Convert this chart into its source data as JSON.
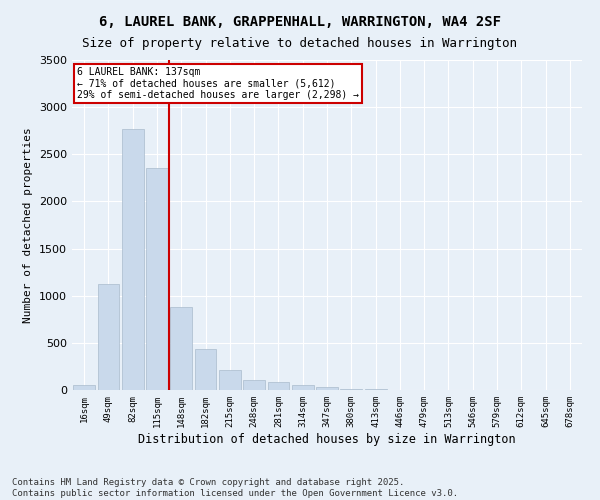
{
  "title": "6, LAUREL BANK, GRAPPENHALL, WARRINGTON, WA4 2SF",
  "subtitle": "Size of property relative to detached houses in Warrington",
  "xlabel": "Distribution of detached houses by size in Warrington",
  "ylabel": "Number of detached properties",
  "bar_color": "#c9d9eb",
  "bar_edge_color": "#aabbcc",
  "background_color": "#e8f0f8",
  "grid_color": "#ffffff",
  "annotation_text_line1": "6 LAUREL BANK: 137sqm",
  "annotation_text_line2": "← 71% of detached houses are smaller (5,612)",
  "annotation_text_line3": "29% of semi-detached houses are larger (2,298) →",
  "annotation_box_color": "#ffffff",
  "annotation_border_color": "#cc0000",
  "vline_color": "#cc0000",
  "categories": [
    "16sqm",
    "49sqm",
    "82sqm",
    "115sqm",
    "148sqm",
    "182sqm",
    "215sqm",
    "248sqm",
    "281sqm",
    "314sqm",
    "347sqm",
    "380sqm",
    "413sqm",
    "446sqm",
    "479sqm",
    "513sqm",
    "546sqm",
    "579sqm",
    "612sqm",
    "645sqm",
    "678sqm"
  ],
  "values": [
    50,
    1120,
    2770,
    2350,
    880,
    440,
    210,
    105,
    85,
    55,
    30,
    15,
    10,
    5,
    2,
    2,
    1,
    0,
    0,
    0,
    0
  ],
  "ylim": [
    0,
    3500
  ],
  "yticks": [
    0,
    500,
    1000,
    1500,
    2000,
    2500,
    3000,
    3500
  ],
  "footer_line1": "Contains HM Land Registry data © Crown copyright and database right 2025.",
  "footer_line2": "Contains public sector information licensed under the Open Government Licence v3.0.",
  "title_fontsize": 10,
  "subtitle_fontsize": 9,
  "footer_fontsize": 6.5,
  "ylabel_fontsize": 8,
  "xlabel_fontsize": 8.5,
  "ytick_fontsize": 8,
  "xtick_fontsize": 6.5
}
